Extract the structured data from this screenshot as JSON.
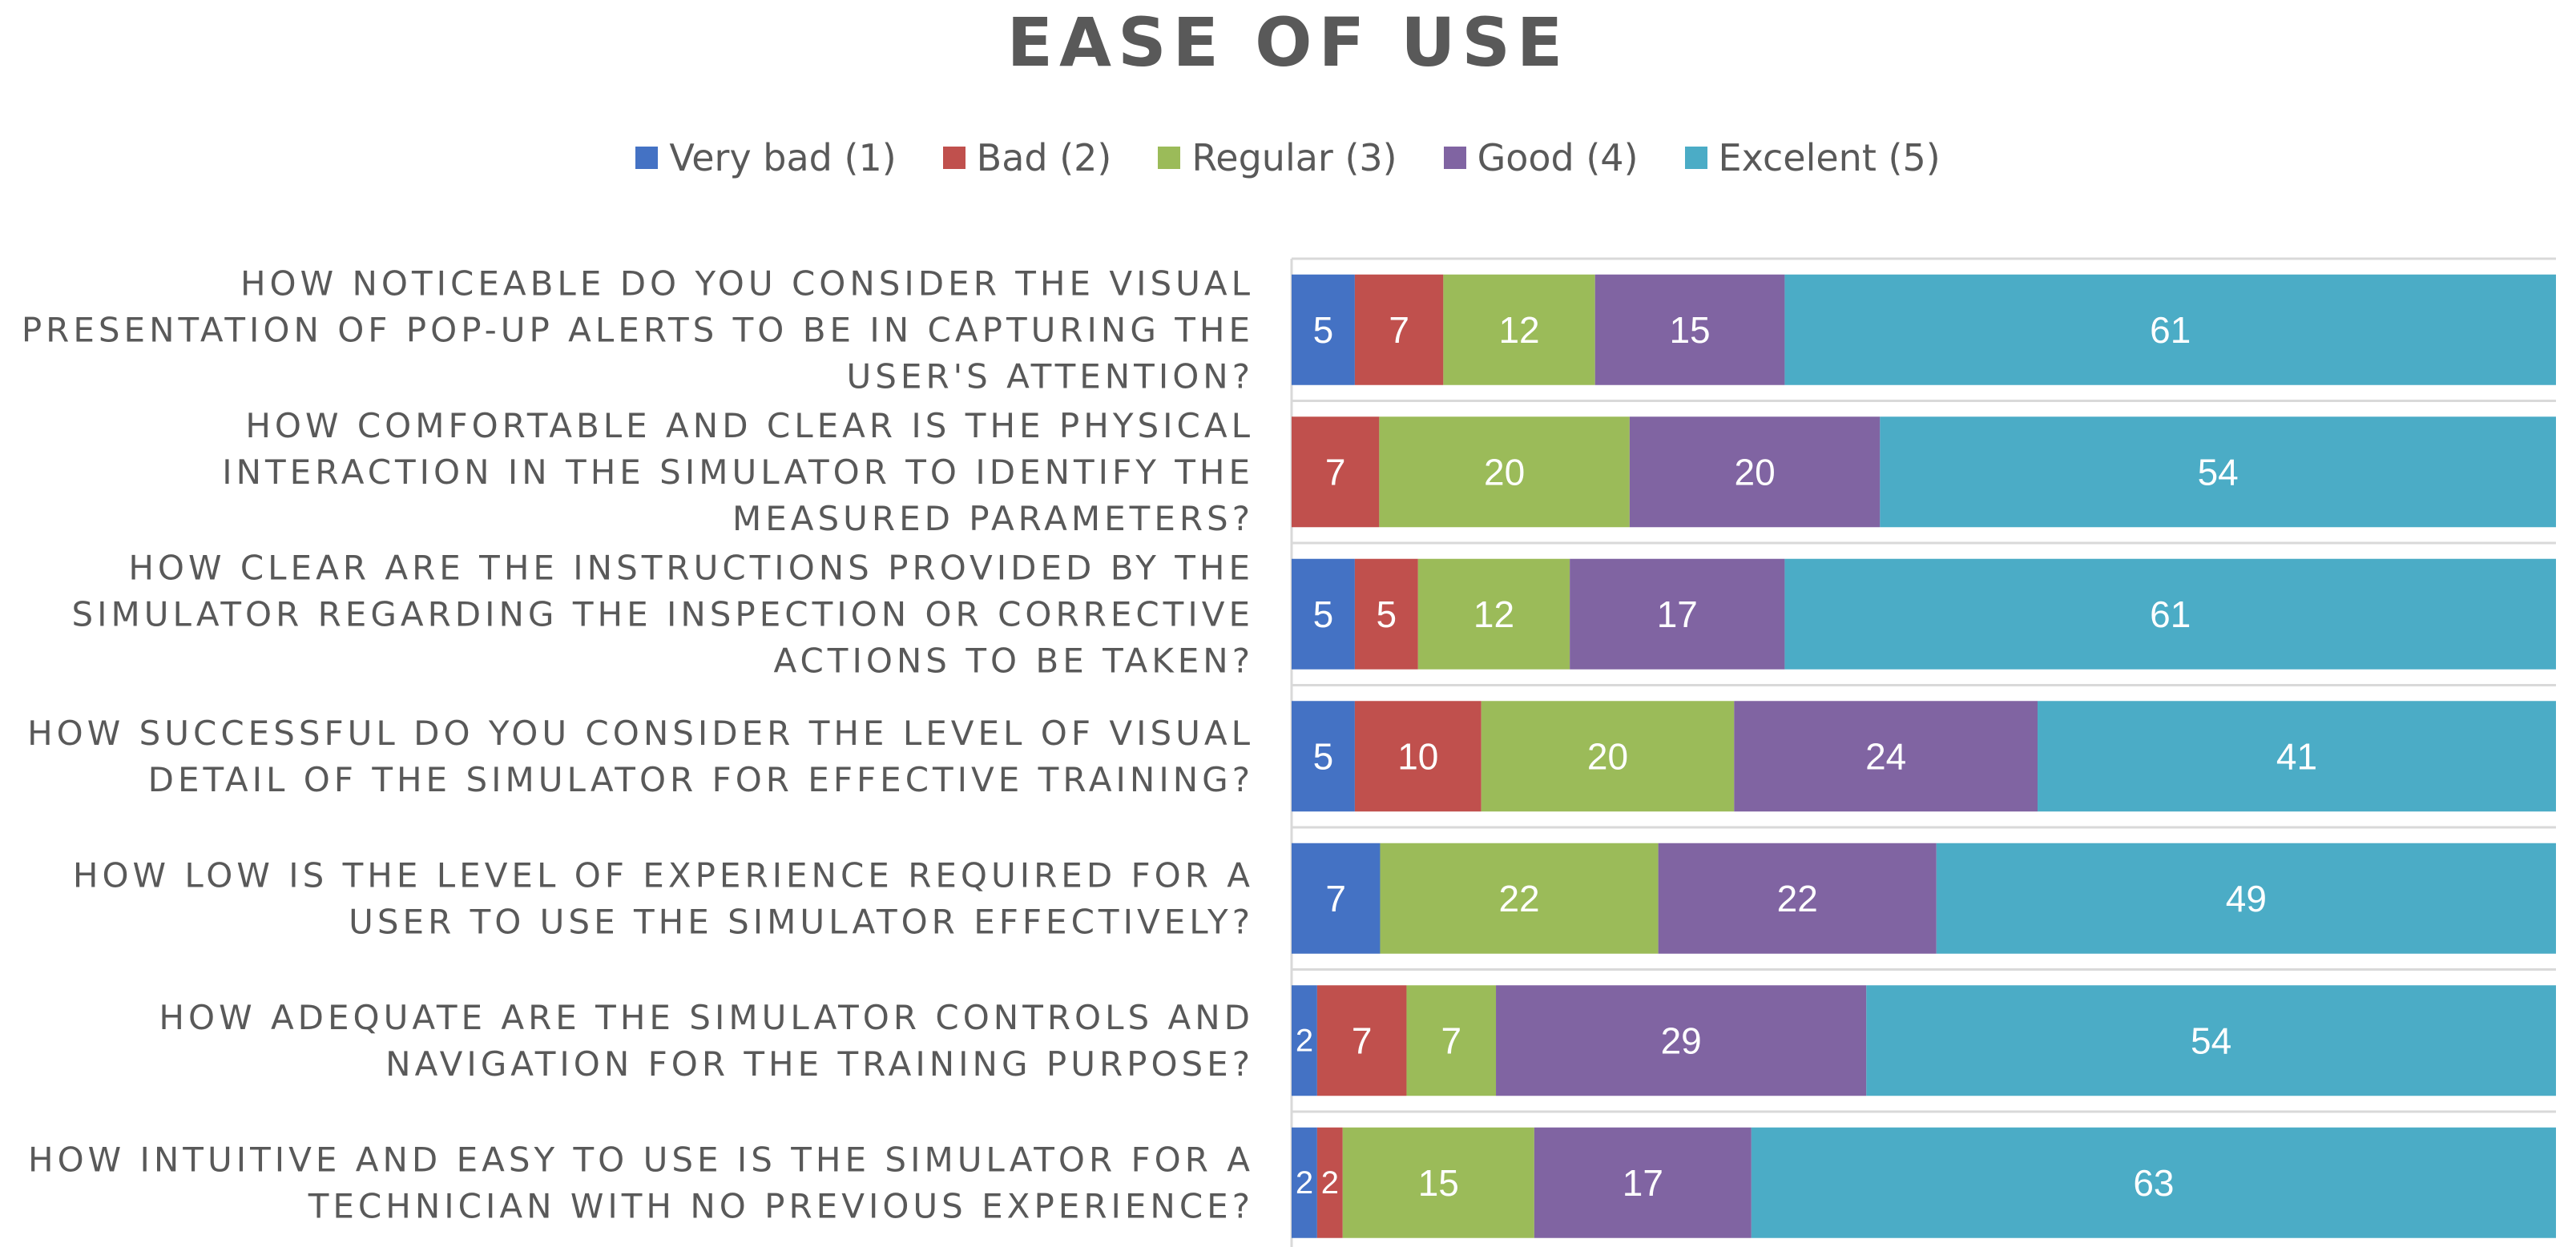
{
  "chart_data": {
    "type": "bar",
    "orientation": "horizontal",
    "stacked": true,
    "stack_mode": "percent",
    "title": "EASE OF USE",
    "legend_position": "top",
    "categories": [
      [
        "HOW NOTICEABLE DO YOU CONSIDER THE VISUAL",
        "PRESENTATION OF POP-UP ALERTS TO BE IN CAPTURING THE",
        "USER'S ATTENTION?"
      ],
      [
        "HOW COMFORTABLE AND CLEAR IS THE PHYSICAL",
        "INTERACTION IN THE SIMULATOR TO IDENTIFY THE",
        "MEASURED PARAMETERS?"
      ],
      [
        "HOW CLEAR ARE THE INSTRUCTIONS PROVIDED BY THE",
        "SIMULATOR REGARDING THE INSPECTION OR CORRECTIVE",
        "ACTIONS TO BE TAKEN?"
      ],
      [
        "HOW SUCCESSFUL DO YOU CONSIDER THE LEVEL OF VISUAL",
        "DETAIL OF THE SIMULATOR FOR EFFECTIVE TRAINING?"
      ],
      [
        "HOW LOW IS THE LEVEL OF EXPERIENCE REQUIRED FOR A",
        "USER TO USE THE SIMULATOR EFFECTIVELY?"
      ],
      [
        "HOW ADEQUATE ARE THE SIMULATOR CONTROLS AND",
        "NAVIGATION FOR THE TRAINING PURPOSE?"
      ],
      [
        "HOW INTUITIVE AND EASY TO USE IS THE SIMULATOR FOR A",
        "TECHNICIAN WITH NO PREVIOUS EXPERIENCE?"
      ]
    ],
    "series": [
      {
        "name": "Very bad (1)",
        "color": "#4472C4",
        "values": [
          5,
          0,
          5,
          5,
          7,
          2,
          2
        ]
      },
      {
        "name": "Bad (2)",
        "color": "#C0504D",
        "values": [
          7,
          7,
          5,
          10,
          0,
          7,
          2
        ]
      },
      {
        "name": "Regular (3)",
        "color": "#9BBB59",
        "values": [
          12,
          20,
          12,
          20,
          22,
          7,
          15
        ]
      },
      {
        "name": "Good (4)",
        "color": "#8064A2",
        "values": [
          15,
          20,
          17,
          24,
          22,
          29,
          17
        ]
      },
      {
        "name": "Excelent (5)",
        "color": "#4BACC6",
        "values": [
          61,
          54,
          61,
          41,
          49,
          54,
          63
        ]
      }
    ],
    "grid": true
  }
}
